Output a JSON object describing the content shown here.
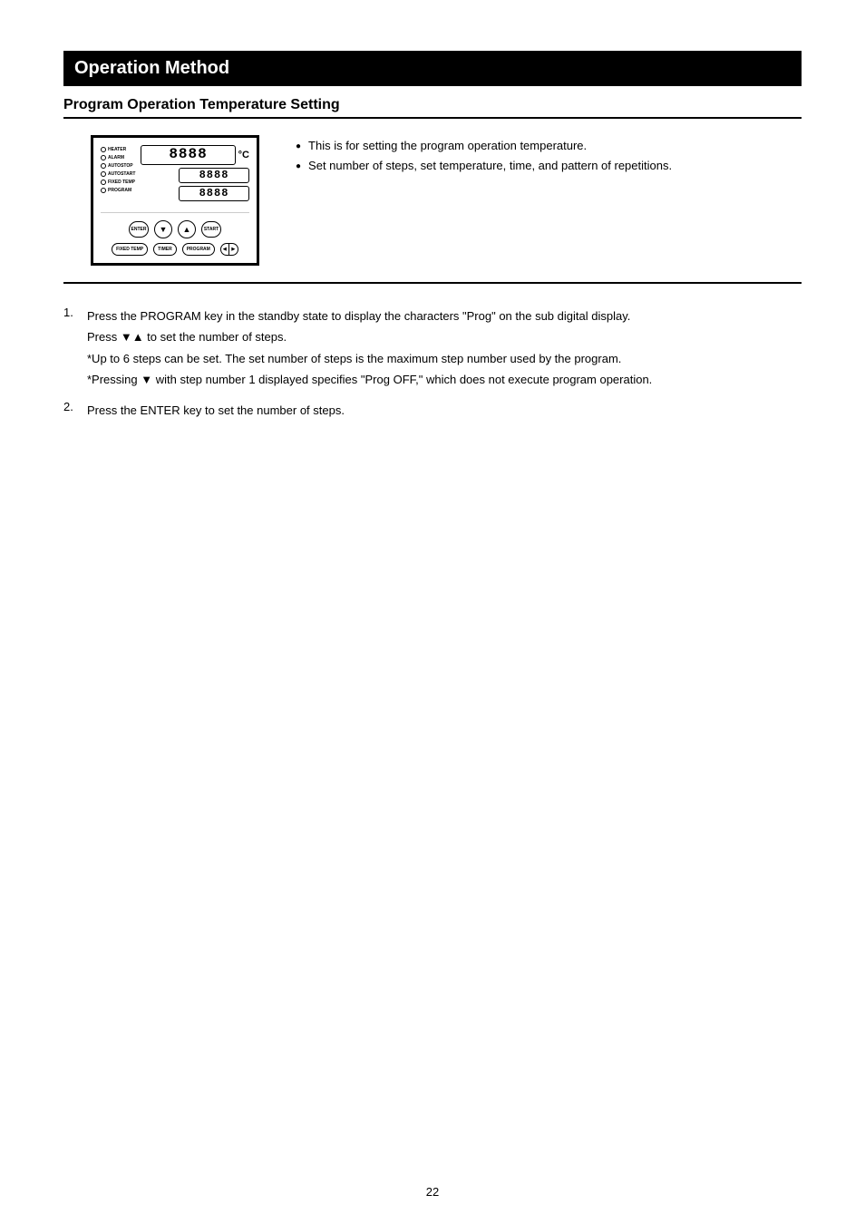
{
  "title_bar": "Operation Method",
  "section_header": "Program Operation Temperature Setting",
  "panel": {
    "leds": [
      "HEATER",
      "ALARM",
      "AUTOSTOP",
      "AUTOSTART",
      "FIXED TEMP",
      "PROGRAM"
    ],
    "display_main": "8888",
    "display_unit": "°C",
    "display_sub1": "8888",
    "display_sub2": "8888",
    "btn_enter": "ENTER",
    "btn_start": "START",
    "btn_fixed": "FIXED TEMP",
    "btn_timer": "TIMER",
    "btn_program": "PROGRAM",
    "btn_up_glyph": "▲",
    "btn_down_glyph": "▼"
  },
  "bullets": {
    "item1": "This is for setting the program operation temperature.",
    "item2": "Set number of steps, set temperature, time, and pattern of repetitions."
  },
  "steps": {
    "s1_num": "1.",
    "s1_text_a": "Press the PROGRAM key in the standby state to display the characters \"Prog\" on the sub digital display.",
    "s1_text_b": "Press ▼▲ to set the number of steps.",
    "s1_text_c": "*Up to 6 steps can be set. The set number of steps is the maximum step number used by the program.",
    "s1_text_d": "*Pressing ▼ with step number 1 displayed specifies \"Prog OFF,\" which does not execute program operation.",
    "s2_num": "2.",
    "s2_text": "Press the ENTER key to set the number of steps."
  },
  "page_number": "22",
  "colors": {
    "black": "#000000",
    "white": "#ffffff"
  }
}
